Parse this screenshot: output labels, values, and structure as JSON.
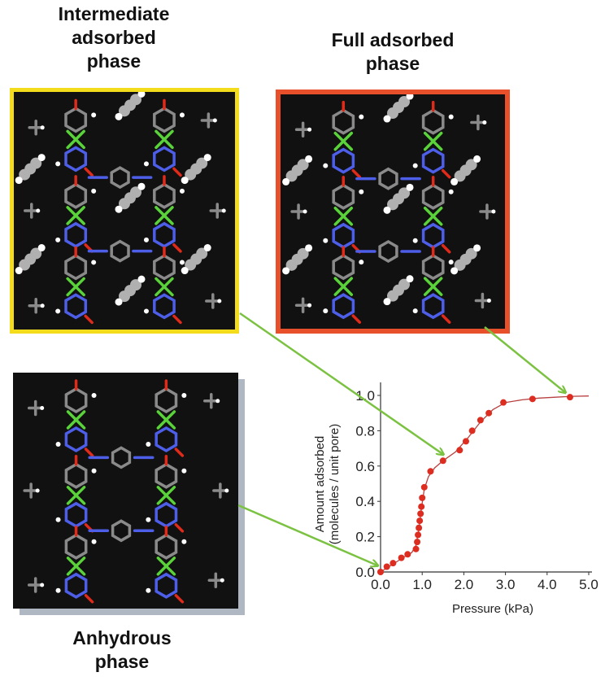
{
  "phases": {
    "intermediate": {
      "lines": [
        "Intermediate",
        "adsorbed",
        "phase"
      ],
      "frame_color": "#f2dc1c"
    },
    "full": {
      "lines": [
        "Full adsorbed",
        "phase"
      ],
      "frame_color": "#e8502c"
    },
    "anhydrous": {
      "lines": [
        "Anhydrous",
        "phase"
      ],
      "frame_color": "none"
    }
  },
  "colors": {
    "arrow": "#7cc242",
    "curve": "#b84040",
    "point": "#dd2c20",
    "carbon": "#8a8a8a",
    "nitrogen": "#4d5ee8",
    "oxygen": "#e02a1a",
    "metal": "#5ad23a",
    "hydrogen": "#ffffff",
    "guest": "#b0b0b0"
  },
  "chart_data": {
    "type": "scatter",
    "xlabel": "Pressure (kPa)",
    "ylabel_lines": [
      "Amount adsorbed",
      "(molecules / unit pore)"
    ],
    "xlim": [
      0,
      5.0
    ],
    "ylim": [
      0,
      1.05
    ],
    "xticks": [
      "0.0",
      "1.0",
      "2.0",
      "3.0",
      "4.0",
      "5.0"
    ],
    "xtick_values": [
      0,
      1,
      2,
      3,
      4,
      5
    ],
    "yticks": [
      "0.0",
      "0.2",
      "0.4",
      "0.6",
      "0.8",
      "1.0"
    ],
    "ytick_values": [
      0,
      0.2,
      0.4,
      0.6,
      0.8,
      1.0
    ],
    "series": [
      {
        "x": [
          0.0,
          0.15,
          0.3,
          0.5,
          0.65,
          0.85,
          0.88,
          0.9,
          0.92,
          0.94,
          0.96,
          0.98,
          1.0,
          1.05,
          1.2,
          1.5,
          1.9,
          2.05,
          2.2,
          2.4,
          2.6,
          2.95,
          3.65,
          4.55
        ],
        "y": [
          0.0,
          0.03,
          0.05,
          0.08,
          0.1,
          0.13,
          0.17,
          0.21,
          0.25,
          0.29,
          0.33,
          0.37,
          0.42,
          0.48,
          0.57,
          0.63,
          0.69,
          0.74,
          0.8,
          0.86,
          0.9,
          0.96,
          0.98,
          0.99
        ]
      }
    ],
    "fit_curve": {
      "x": [
        0.0,
        0.2,
        0.4,
        0.6,
        0.75,
        0.85,
        0.92,
        0.98,
        1.05,
        1.15,
        1.3,
        1.5,
        1.8,
        2.1,
        2.4,
        2.7,
        3.0,
        3.4,
        3.8,
        4.2,
        4.6,
        5.0
      ],
      "y": [
        0.0,
        0.03,
        0.06,
        0.09,
        0.11,
        0.15,
        0.24,
        0.36,
        0.47,
        0.54,
        0.59,
        0.63,
        0.68,
        0.76,
        0.85,
        0.92,
        0.96,
        0.975,
        0.985,
        0.99,
        0.995,
        0.997
      ]
    }
  }
}
